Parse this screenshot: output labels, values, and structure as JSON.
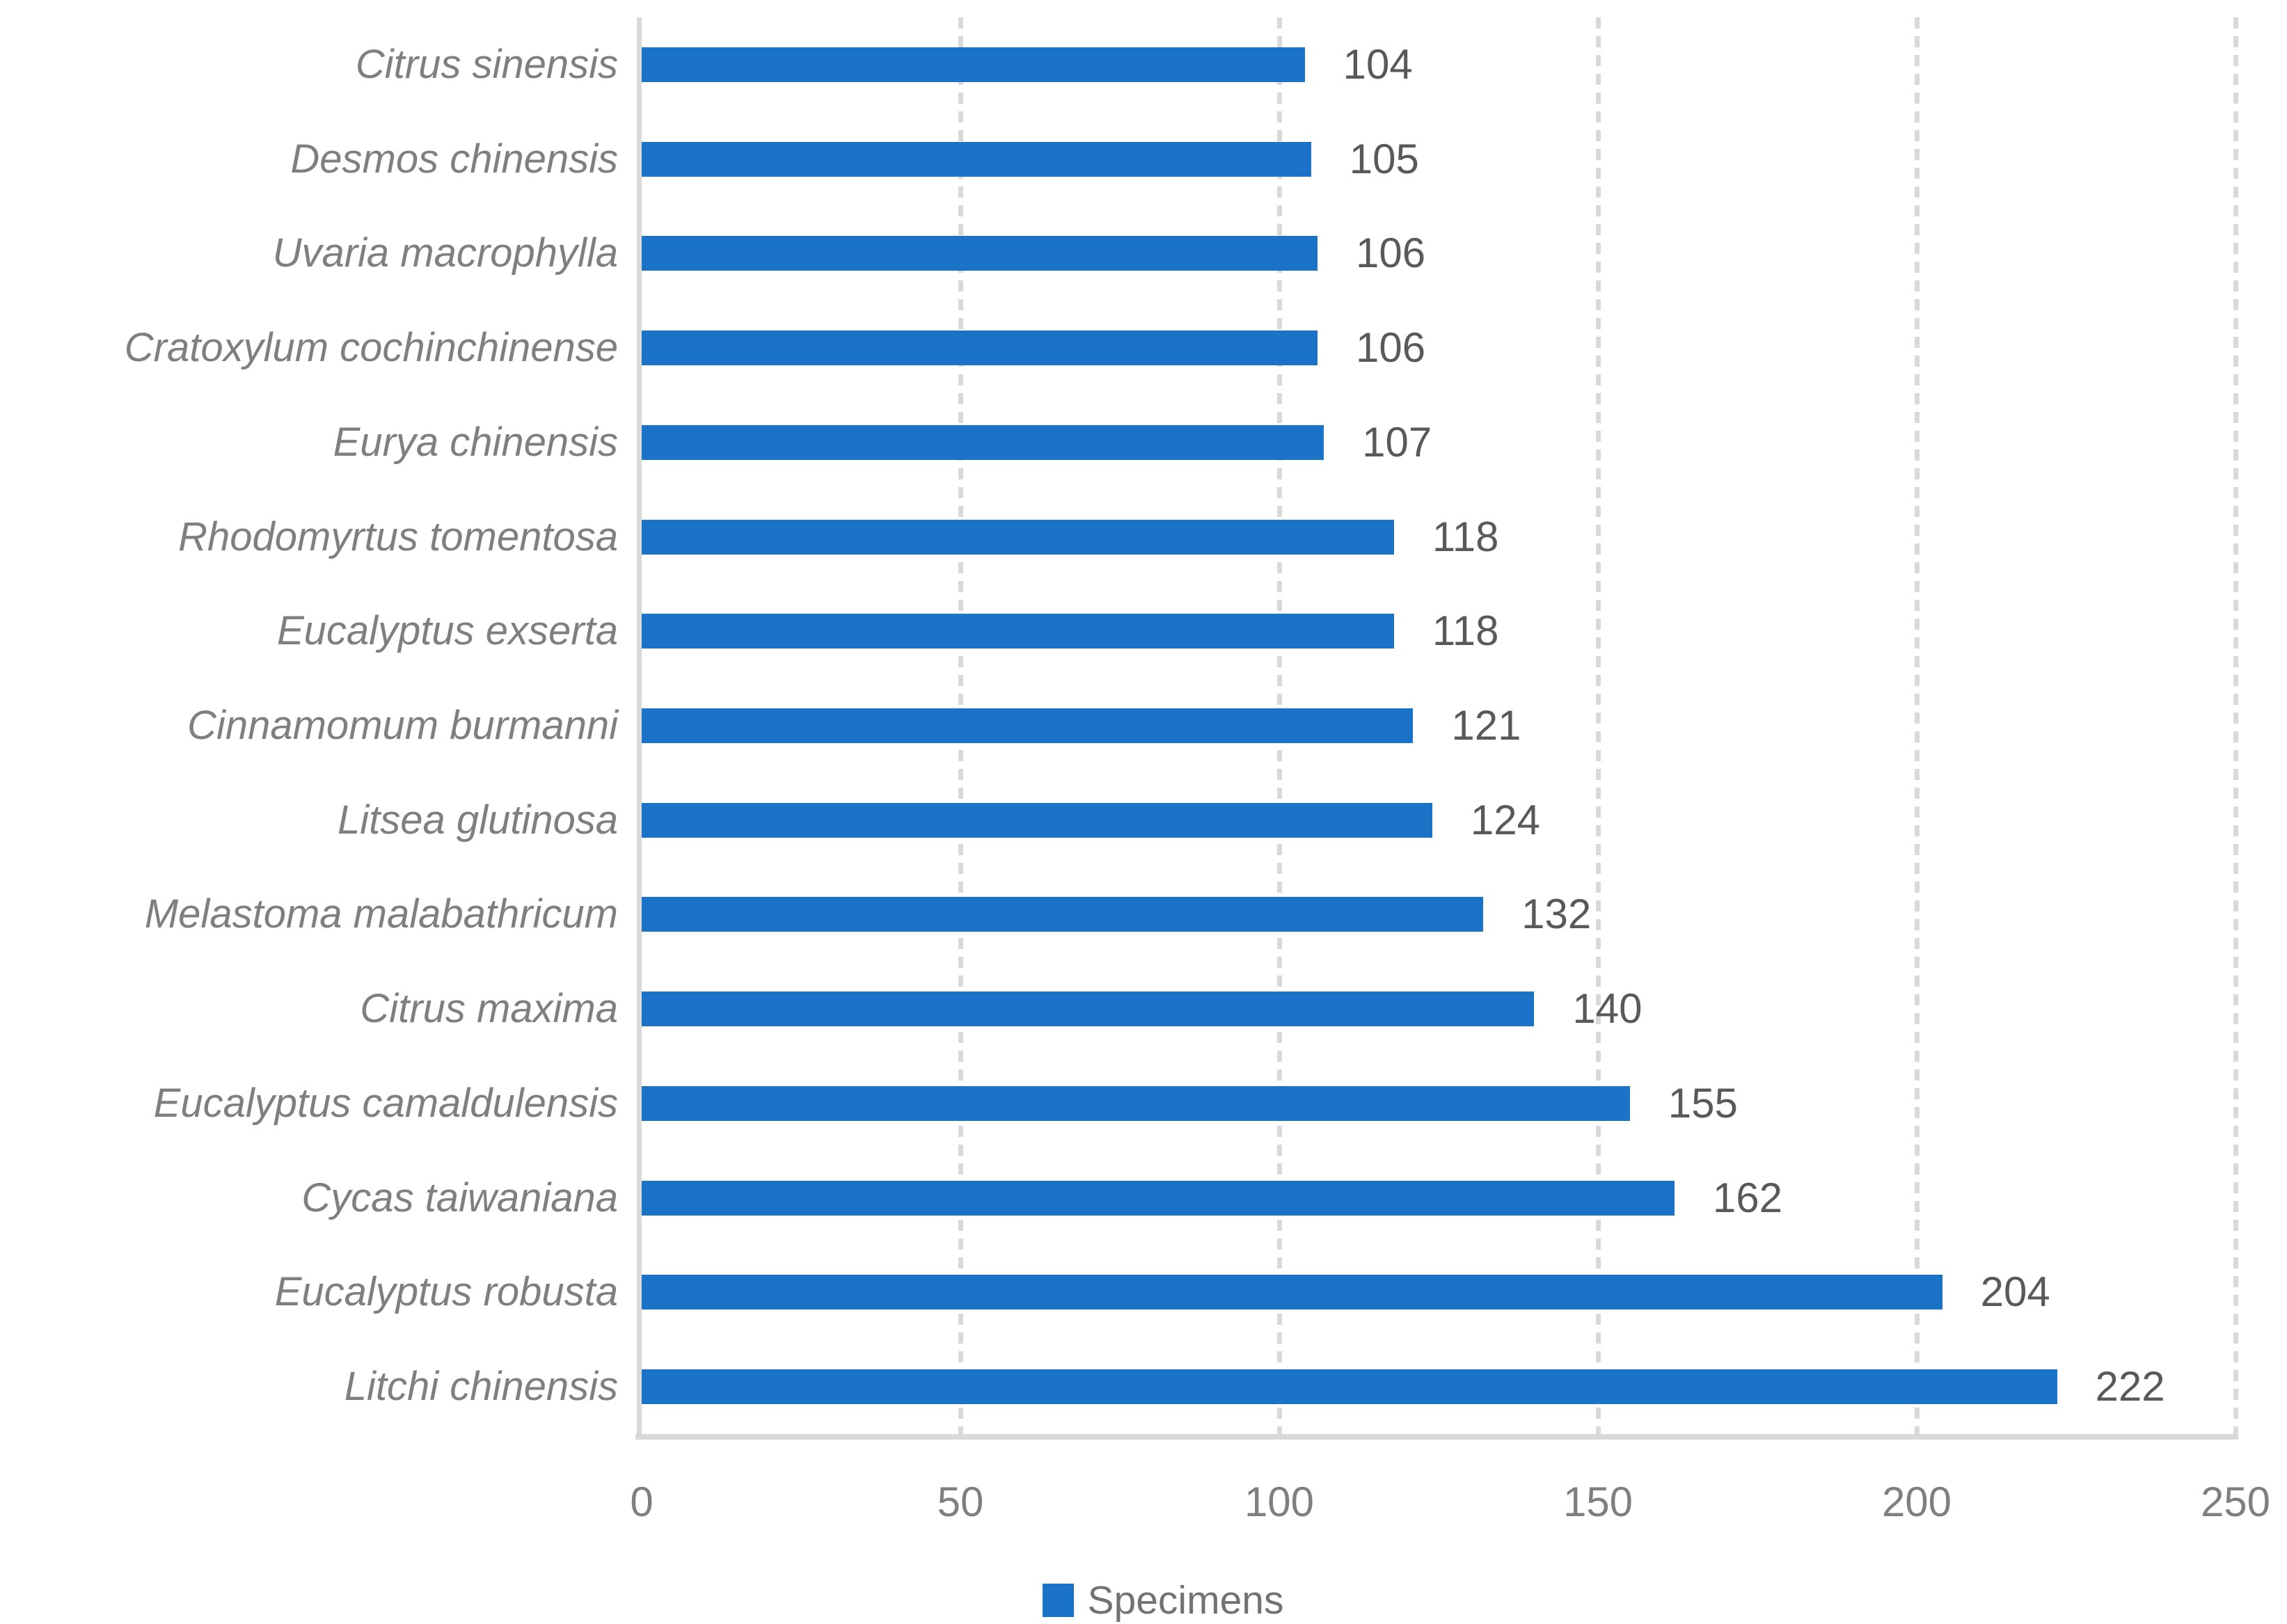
{
  "chart_data": {
    "type": "bar",
    "orientation": "horizontal",
    "title": "",
    "xlabel": "",
    "ylabel": "",
    "xlim": [
      0,
      250
    ],
    "xticks": [
      0,
      50,
      100,
      150,
      200,
      250
    ],
    "grid": "vertical dashed gridlines every 50 units",
    "legend_position": "bottom-center",
    "value_labels_shown": true,
    "categories_top_to_bottom": [
      "Citrus sinensis",
      "Desmos chinensis",
      "Uvaria macrophylla",
      "Cratoxylum cochinchinense",
      "Eurya chinensis",
      "Rhodomyrtus tomentosa",
      "Eucalyptus exserta",
      "Cinnamomum burmanni",
      "Litsea glutinosa",
      "Melastoma malabathricum",
      "Citrus maxima",
      "Eucalyptus camaldulensis",
      "Cycas taiwaniana",
      "Eucalyptus robusta",
      "Litchi chinensis"
    ],
    "series": [
      {
        "name": "Specimens",
        "values": [
          104,
          105,
          106,
          106,
          107,
          118,
          118,
          121,
          124,
          132,
          140,
          155,
          162,
          204,
          222
        ],
        "color": "#1a73c7"
      }
    ]
  },
  "legend": {
    "label": "Specimens"
  },
  "colors": {
    "bar": "#1a73c7",
    "gridline": "#d9d9d9",
    "axis_line": "#d9d9d9",
    "category_text": "#7f7f7f",
    "tick_text": "#7f7f7f",
    "value_text": "#595959",
    "legend_text": "#767171",
    "background": "#ffffff"
  }
}
